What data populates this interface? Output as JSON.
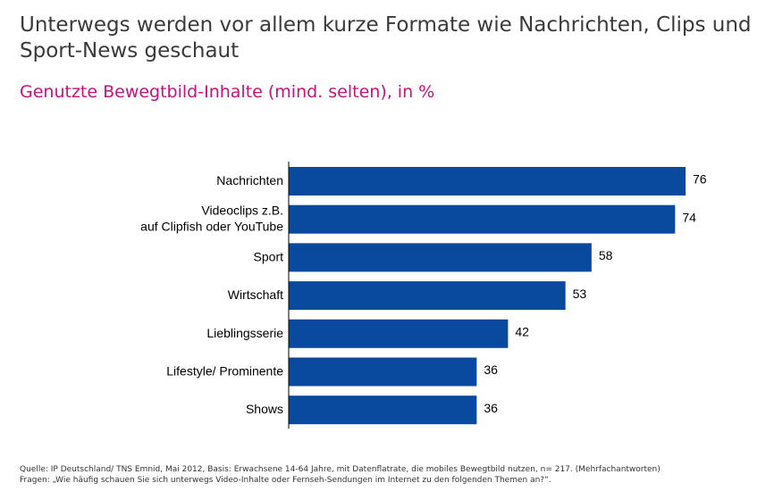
{
  "title": "Unterwegs werden vor allem kurze Formate wie Nachrichten, Clips und Sport-News geschaut",
  "subtitle": "Genutzte Bewegtbild-Inhalte (mind. selten), in %",
  "footer": {
    "source": "Quelle: IP Deutschland/ TNS Emnid, Mai 2012, Basis: Erwachsene 14-64 Jahre, mit Datenflatrate, die mobiles Bewegtbild nutzen, n= 217. (Mehrfachantworten)",
    "question": "Fragen: „Wie häufig schauen Sie sich unterwegs Video-Inhalte oder Fernseh-Sendungen im Internet zu den folgenden Themen an?“."
  },
  "colors": {
    "bar": "#0a4a9e",
    "subtitle": "#c7117e",
    "title": "#3a3a3a"
  },
  "chart_data": {
    "type": "bar",
    "orientation": "horizontal",
    "title": "Genutzte Bewegtbild-Inhalte (mind. selten), in %",
    "xlabel": "",
    "ylabel": "",
    "xlim": [
      0,
      76
    ],
    "grid": false,
    "categories": [
      [
        "Nachrichten"
      ],
      [
        "Videoclips z.B.",
        "auf Clipfish oder YouTube"
      ],
      [
        "Sport"
      ],
      [
        "Wirtschaft"
      ],
      [
        "Lieblingsserie"
      ],
      [
        "Lifestyle/ Prominente"
      ],
      [
        "Shows"
      ]
    ],
    "values": [
      76,
      74,
      58,
      53,
      42,
      36,
      36
    ]
  }
}
